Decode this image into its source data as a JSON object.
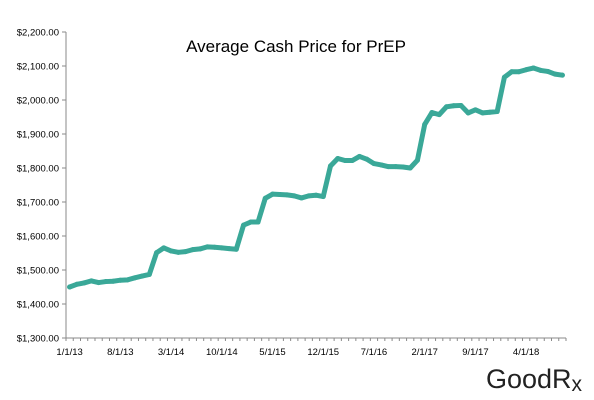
{
  "chart_data": {
    "type": "line",
    "title": "Average Cash Price for PrEP",
    "xlabel": "",
    "ylabel": "",
    "ylim": [
      1300,
      2200
    ],
    "y_ticks": [
      1300,
      1400,
      1500,
      1600,
      1700,
      1800,
      1900,
      2000,
      2100,
      2200
    ],
    "y_tick_labels": [
      "$1,300.00",
      "$1,400.00",
      "$1,500.00",
      "$1,600.00",
      "$1,700.00",
      "$1,800.00",
      "$1,900.00",
      "$2,000.00",
      "$2,100.00",
      "$2,200.00"
    ],
    "x_tick_labels": [
      "1/1/13",
      "8/1/13",
      "3/1/14",
      "10/1/14",
      "5/1/15",
      "12/1/15",
      "7/1/16",
      "2/1/17",
      "9/1/17",
      "4/1/18"
    ],
    "x_tick_index": [
      0,
      7,
      14,
      21,
      28,
      35,
      42,
      49,
      56,
      63
    ],
    "grid": false,
    "line_color": "#3aa898",
    "series": [
      {
        "values": [
          1450,
          1458,
          1462,
          1468,
          1463,
          1466,
          1467,
          1470,
          1471,
          1477,
          1482,
          1487,
          1551,
          1565,
          1556,
          1552,
          1554,
          1560,
          1562,
          1568,
          1567,
          1565,
          1563,
          1561,
          1632,
          1641,
          1641,
          1711,
          1723,
          1722,
          1721,
          1718,
          1712,
          1718,
          1720,
          1716,
          1806,
          1828,
          1822,
          1822,
          1834,
          1826,
          1813,
          1809,
          1804,
          1804,
          1803,
          1800,
          1823,
          1928,
          1963,
          1957,
          1980,
          1983,
          1984,
          1962,
          1971,
          1962,
          1964,
          1966,
          2067,
          2083,
          2083,
          2089,
          2094,
          2087,
          2084,
          2076,
          2073
        ]
      }
    ]
  },
  "logo": {
    "text": "GoodRx"
  }
}
